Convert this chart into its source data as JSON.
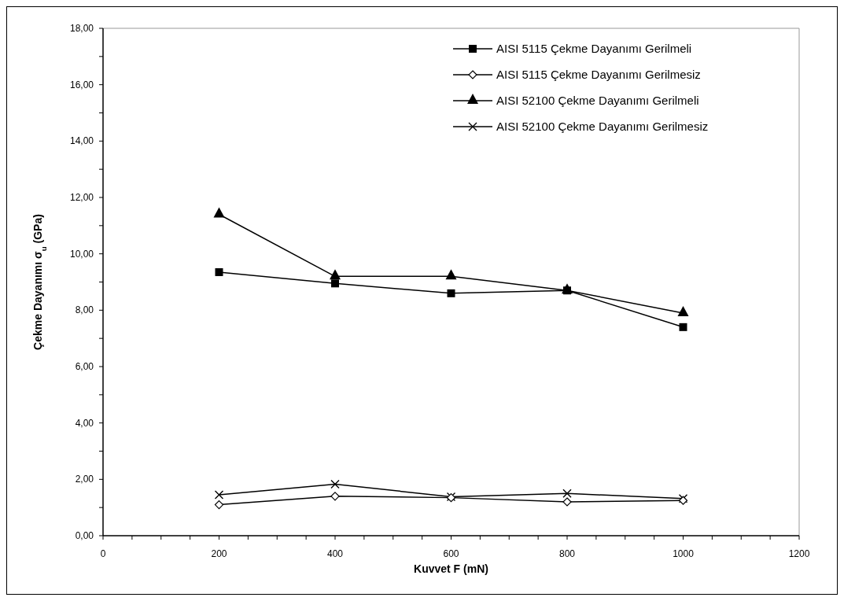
{
  "chart_data": {
    "type": "line",
    "xlabel": "Kuvvet F (mN)",
    "ylabel": "Çekme Dayanımı σ$_{u}$ (GPa)",
    "x": [
      200,
      400,
      600,
      800,
      1000
    ],
    "xlim": [
      0,
      1200
    ],
    "ylim": [
      0,
      18
    ],
    "xticks": [
      0,
      {
        "value": 50,
        "label": null
      },
      {
        "value": 100,
        "label": null
      },
      {
        "value": 150,
        "label": null
      },
      200,
      {
        "value": 250,
        "label": null
      },
      {
        "value": 300,
        "label": null
      },
      {
        "value": 350,
        "label": null
      },
      400,
      {
        "value": 450,
        "label": null
      },
      {
        "value": 500,
        "label": null
      },
      {
        "value": 550,
        "label": null
      },
      600,
      {
        "value": 650,
        "label": null
      },
      {
        "value": 700,
        "label": null
      },
      {
        "value": 750,
        "label": null
      },
      800,
      {
        "value": 850,
        "label": null
      },
      {
        "value": 900,
        "label": null
      },
      {
        "value": 950,
        "label": null
      },
      1000,
      {
        "value": 1050,
        "label": null
      },
      {
        "value": 1100,
        "label": null
      },
      {
        "value": 1150,
        "label": null
      },
      1200
    ],
    "yticks": [
      {
        "value": 0,
        "label": "0,00"
      },
      {
        "value": 1,
        "label": null
      },
      {
        "value": 2,
        "label": "2,00"
      },
      {
        "value": 3,
        "label": null
      },
      {
        "value": 4,
        "label": "4,00"
      },
      {
        "value": 5,
        "label": null
      },
      {
        "value": 6,
        "label": "6,00"
      },
      {
        "value": 7,
        "label": null
      },
      {
        "value": 8,
        "label": "8,00"
      },
      {
        "value": 9,
        "label": null
      },
      {
        "value": 10,
        "label": "10,00"
      },
      {
        "value": 11,
        "label": null
      },
      {
        "value": 12,
        "label": "12,00"
      },
      {
        "value": 13,
        "label": null
      },
      {
        "value": 14,
        "label": "14,00"
      },
      {
        "value": 15,
        "label": null
      },
      {
        "value": 16,
        "label": "16,00"
      },
      {
        "value": 17,
        "label": null
      },
      {
        "value": 18,
        "label": "18,00"
      }
    ],
    "grid": false,
    "legend": "top right",
    "series": [
      {
        "name": "AISI 5115 Çekme Dayanımı Gerilmeli",
        "color": "#000000",
        "marker": "square",
        "values": [
          9.35,
          8.95,
          8.6,
          8.7,
          7.4
        ]
      },
      {
        "name": "AISI 5115 Çekme Dayanımı Gerilmesiz",
        "color": "#000000",
        "marker": "diamond",
        "values": [
          1.1,
          1.4,
          1.35,
          1.2,
          1.25
        ]
      },
      {
        "name": "AISI 52100 Çekme Dayanımı Gerilmeli",
        "color": "#000000",
        "marker": "triangle",
        "values": [
          11.4,
          9.2,
          9.2,
          8.7,
          7.9
        ]
      },
      {
        "name": "AISI 52100 Çekme Dayanımı Gerilmesiz",
        "color": "#000000",
        "marker": "cross",
        "values": [
          1.45,
          1.83,
          1.38,
          1.5,
          1.32
        ]
      }
    ]
  }
}
